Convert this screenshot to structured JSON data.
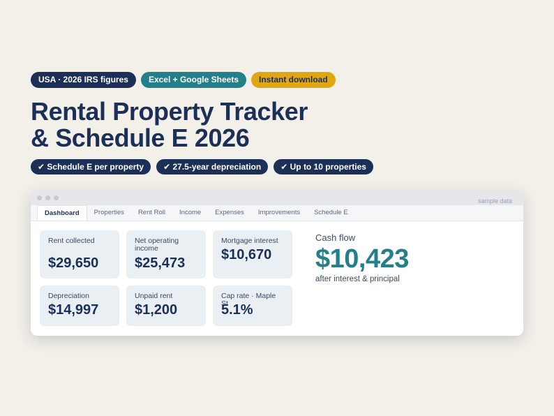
{
  "badges_top": [
    {
      "label": "USA · 2026 IRS figures",
      "color": "#1b2f57"
    },
    {
      "label": "Excel + Google Sheets",
      "color": "#23808a"
    },
    {
      "label": "Instant download",
      "color": "#e0a712"
    }
  ],
  "title": {
    "line1": "Rental Property Tracker",
    "line2": "& Schedule E 2026"
  },
  "features": [
    {
      "label": "✔ Schedule E per property"
    },
    {
      "label": "✔ 27.5-year depreciation"
    },
    {
      "label": "✔ Up to 10 properties"
    }
  ],
  "window": {
    "sample_note": "sample data",
    "tabs": [
      "Dashboard",
      "Properties",
      "Rent Roll",
      "Income",
      "Expenses",
      "Improvements",
      "Schedule E"
    ],
    "active_tab": "Dashboard",
    "cards": [
      {
        "label": "Rent collected",
        "value": "$29,650"
      },
      {
        "label": "Net operating income",
        "value": "$25,473"
      },
      {
        "label": "Mortgage interest",
        "value": "$10,670"
      },
      {
        "label": "Depreciation",
        "value": "$14,997"
      },
      {
        "label": "Unpaid rent",
        "value": "$1,200"
      },
      {
        "label": "Cap rate · Maple St",
        "value": "5.1%"
      }
    ],
    "cashflow": {
      "label": "Cash flow",
      "value": "$10,423",
      "sub": "after interest & principal"
    }
  },
  "colors": {
    "navy": "#1b2f57",
    "teal": "#23808a",
    "gold": "#e0a712",
    "background": "#f3f0ea"
  }
}
